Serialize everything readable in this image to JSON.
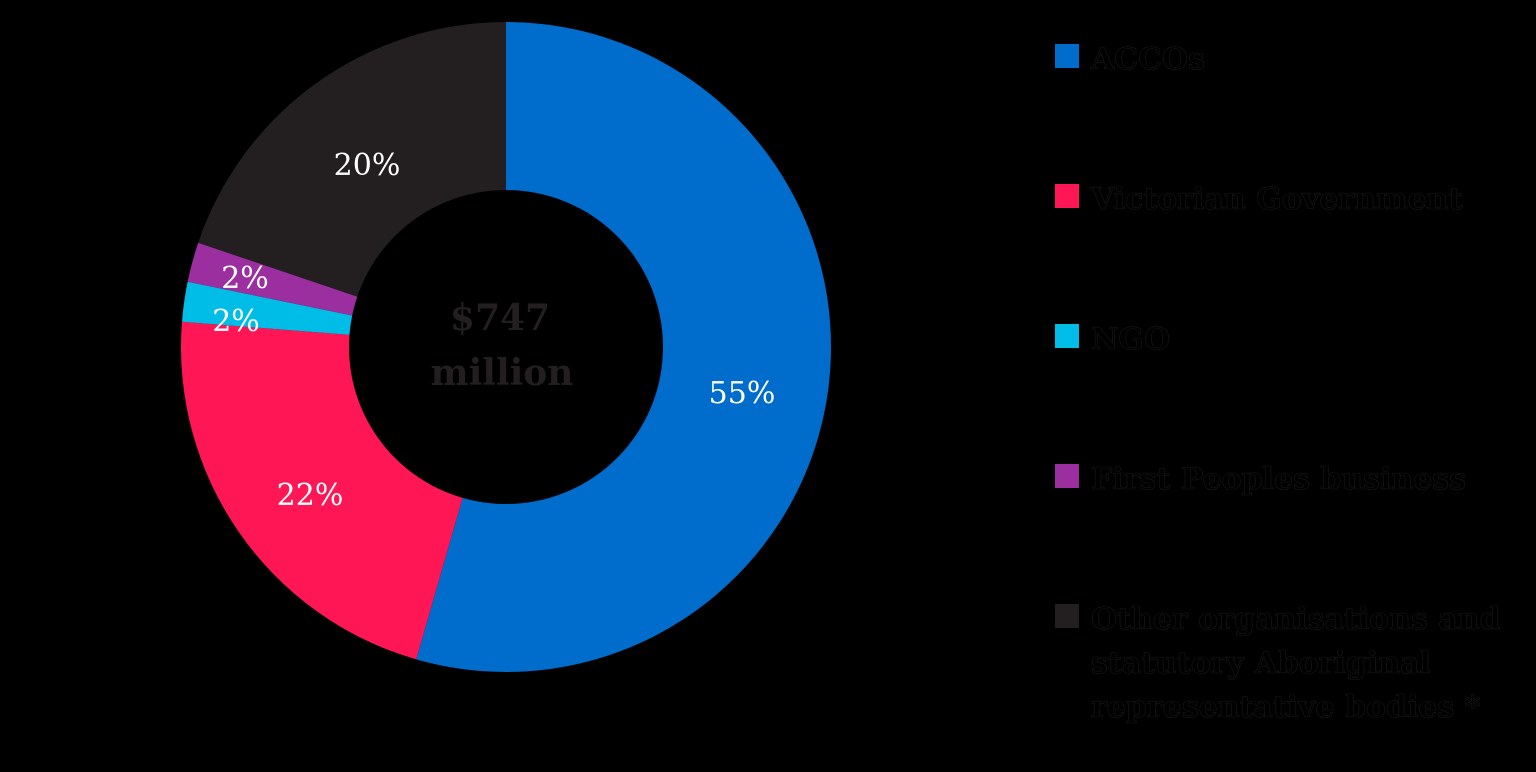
{
  "chart_data": {
    "type": "pie",
    "subtype": "donut",
    "title": "",
    "center_label": [
      "$747",
      "million"
    ],
    "total": "$747 million",
    "categories": [
      "ACCOs",
      "Victorian Government",
      "NGO",
      "First Peoples business",
      "Other organisations and statutory Aboriginal representative bodies *"
    ],
    "values": [
      55,
      22,
      2,
      2,
      20
    ],
    "value_labels": [
      "55%",
      "22%",
      "2%",
      "2%",
      "20%"
    ],
    "colors": [
      "#006ccb",
      "#ff1654",
      "#00bde8",
      "#9b2fa0",
      "#231f20"
    ],
    "legend_position": "right",
    "start_angle": "top, clockwise"
  },
  "legend": {
    "items": [
      {
        "label": "ACCOs",
        "color": "#006ccb"
      },
      {
        "label": "Victorian Government",
        "color": "#ff1654"
      },
      {
        "label": "NGO",
        "color": "#00bde8"
      },
      {
        "label": "First Peoples business",
        "color": "#9b2fa0"
      },
      {
        "label": "Other organisations and statutory Aboriginal representative bodies *",
        "color": "#231f20"
      }
    ]
  },
  "center": {
    "line1": "$747",
    "line2": "million"
  },
  "labels": {
    "accos": "55%",
    "vicgov": "22%",
    "ngo": "2%",
    "fpb": "2%",
    "other": "20%"
  }
}
